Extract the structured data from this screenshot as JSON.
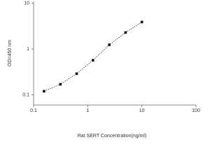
{
  "chart_data": {
    "type": "scatter",
    "x_label": "Rat SERT Concentration(ng/ml)",
    "y_label": "OD=450 nm",
    "x": [
      0.156,
      0.312,
      0.625,
      1.25,
      2.5,
      5,
      10
    ],
    "values": [
      0.12,
      0.17,
      0.29,
      0.57,
      1.24,
      2.3,
      3.9
    ],
    "color": "#111111",
    "x_log": true,
    "y_log": true,
    "xlim": [
      0.1,
      100
    ],
    "xticks": [
      0.1,
      1,
      10,
      100
    ],
    "ylim": [
      0.06,
      11
    ],
    "yticks": [
      0.1,
      1,
      10
    ],
    "line_style": "dotted"
  }
}
